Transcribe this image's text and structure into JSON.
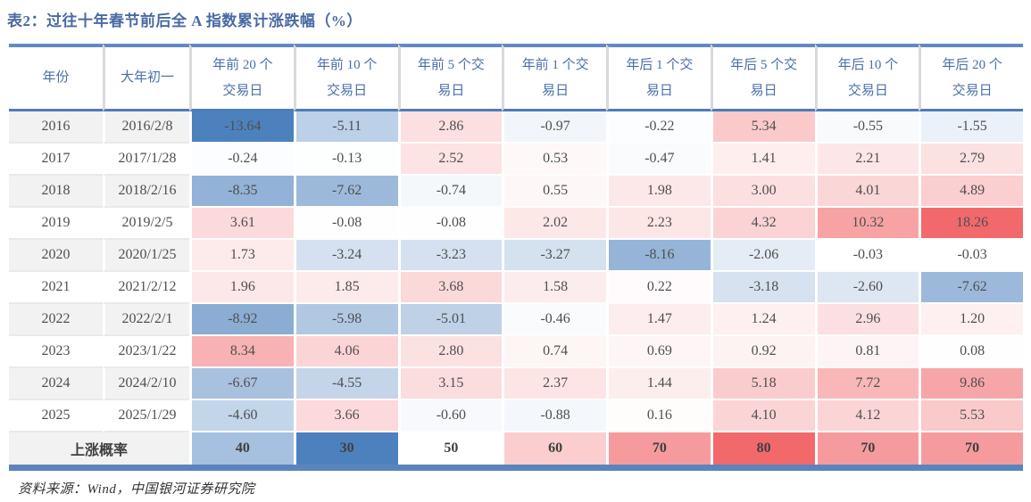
{
  "title": "表2：过往十年春节前后全 A 指数累计涨跌幅（%）",
  "source": "资料来源：Wind，中国银河证券研究院",
  "colors": {
    "accent_blue_max": "#4d81be",
    "accent_red_max": "#f2696c",
    "header_text": "#4a6fa8",
    "title_text": "#4a69a2",
    "body_text": "#4f4f4f",
    "stripe_gray": "#f2f2f2",
    "top_bar_blue": "#618ac2",
    "header_rule_blue": "#4e7cb7",
    "bottom_bar_blue": "#5b84bd"
  },
  "scale": {
    "data_min": -13.64,
    "data_max": 18.26,
    "prob_min": 30,
    "prob_mid": 50,
    "prob_max": 80
  },
  "table": {
    "columns": [
      "年份",
      "大年初一",
      "年前 20 个\n交易日",
      "年前 10 个\n交易日",
      "年前 5 个交\n易日",
      "年前 1 个交\n易日",
      "年后 1 个交\n易日",
      "年后 5 个交\n易日",
      "年后 10 个\n交易日",
      "年后 20 个\n交易日"
    ],
    "rows": [
      {
        "year": "2016",
        "date": "2016/2/8",
        "values": [
          -13.64,
          -5.11,
          2.86,
          -0.97,
          -0.22,
          5.34,
          -0.55,
          -1.55
        ]
      },
      {
        "year": "2017",
        "date": "2017/1/28",
        "values": [
          -0.24,
          -0.13,
          2.52,
          0.53,
          -0.47,
          1.41,
          2.21,
          2.79
        ]
      },
      {
        "year": "2018",
        "date": "2018/2/16",
        "values": [
          -8.35,
          -7.62,
          -0.74,
          0.55,
          1.98,
          3.0,
          4.01,
          4.89
        ]
      },
      {
        "year": "2019",
        "date": "2019/2/5",
        "values": [
          3.61,
          -0.08,
          -0.08,
          2.02,
          2.23,
          4.32,
          10.32,
          18.26
        ]
      },
      {
        "year": "2020",
        "date": "2020/1/25",
        "values": [
          1.73,
          -3.24,
          -3.23,
          -3.27,
          -8.16,
          -2.06,
          -0.03,
          -0.03
        ]
      },
      {
        "year": "2021",
        "date": "2021/2/12",
        "values": [
          1.96,
          1.85,
          3.68,
          1.58,
          0.22,
          -3.18,
          -2.6,
          -7.62
        ]
      },
      {
        "year": "2022",
        "date": "2022/2/1",
        "values": [
          -8.92,
          -5.98,
          -5.01,
          -0.46,
          1.47,
          1.24,
          2.96,
          1.2
        ]
      },
      {
        "year": "2023",
        "date": "2023/1/22",
        "values": [
          8.34,
          4.06,
          2.8,
          0.74,
          0.69,
          0.92,
          0.81,
          0.08
        ]
      },
      {
        "year": "2024",
        "date": "2024/2/10",
        "values": [
          -6.67,
          -4.55,
          3.15,
          2.37,
          1.44,
          5.18,
          7.72,
          9.86
        ]
      },
      {
        "year": "2025",
        "date": "2025/1/29",
        "values": [
          -4.6,
          3.66,
          -0.6,
          -0.88,
          0.16,
          4.1,
          4.12,
          5.53
        ]
      }
    ],
    "summary": {
      "label": "上涨概率",
      "values": [
        40,
        30,
        50,
        60,
        70,
        80,
        70,
        70
      ]
    }
  },
  "chart_data": {
    "type": "table",
    "title": "表2：过往十年春节前后全 A 指数累计涨跌幅（%）",
    "categories": [
      "年前 20 个交易日",
      "年前 10 个交易日",
      "年前 5 个交易日",
      "年前 1 个交易日",
      "年后 1 个交易日",
      "年后 5 个交易日",
      "年后 10 个交易日",
      "年后 20 个交易日"
    ],
    "series": [
      {
        "name": "2016",
        "date": "2016/2/8",
        "values": [
          -13.64,
          -5.11,
          2.86,
          -0.97,
          -0.22,
          5.34,
          -0.55,
          -1.55
        ]
      },
      {
        "name": "2017",
        "date": "2017/1/28",
        "values": [
          -0.24,
          -0.13,
          2.52,
          0.53,
          -0.47,
          1.41,
          2.21,
          2.79
        ]
      },
      {
        "name": "2018",
        "date": "2018/2/16",
        "values": [
          -8.35,
          -7.62,
          -0.74,
          0.55,
          1.98,
          3.0,
          4.01,
          4.89
        ]
      },
      {
        "name": "2019",
        "date": "2019/2/5",
        "values": [
          3.61,
          -0.08,
          -0.08,
          2.02,
          2.23,
          4.32,
          10.32,
          18.26
        ]
      },
      {
        "name": "2020",
        "date": "2020/1/25",
        "values": [
          1.73,
          -3.24,
          -3.23,
          -3.27,
          -8.16,
          -2.06,
          -0.03,
          -0.03
        ]
      },
      {
        "name": "2021",
        "date": "2021/2/12",
        "values": [
          1.96,
          1.85,
          3.68,
          1.58,
          0.22,
          -3.18,
          -2.6,
          -7.62
        ]
      },
      {
        "name": "2022",
        "date": "2022/2/1",
        "values": [
          -8.92,
          -5.98,
          -5.01,
          -0.46,
          1.47,
          1.24,
          2.96,
          1.2
        ]
      },
      {
        "name": "2023",
        "date": "2023/1/22",
        "values": [
          8.34,
          4.06,
          2.8,
          0.74,
          0.69,
          0.92,
          0.81,
          0.08
        ]
      },
      {
        "name": "2024",
        "date": "2024/2/10",
        "values": [
          -6.67,
          -4.55,
          3.15,
          2.37,
          1.44,
          5.18,
          7.72,
          9.86
        ]
      },
      {
        "name": "2025",
        "date": "2025/1/29",
        "values": [
          -4.6,
          3.66,
          -0.6,
          -0.88,
          0.16,
          4.1,
          4.12,
          5.53
        ]
      },
      {
        "name": "上涨概率",
        "values": [
          40,
          30,
          50,
          60,
          70,
          80,
          70,
          70
        ]
      }
    ]
  }
}
